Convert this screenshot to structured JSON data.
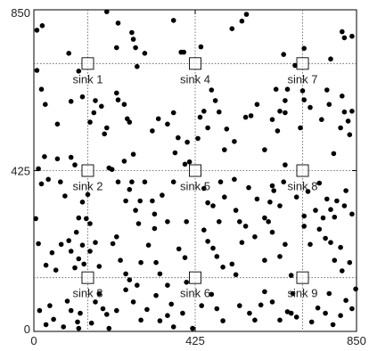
{
  "chart_data": {
    "type": "scatter",
    "title": "",
    "xlabel": "",
    "ylabel": "",
    "xlim": [
      0,
      850
    ],
    "ylim": [
      0,
      850
    ],
    "x_ticks": [
      "0",
      "425",
      "850"
    ],
    "y_ticks": [
      "0",
      "425",
      "850"
    ],
    "grid_lines": [
      142,
      425,
      708
    ],
    "grid": "dotted",
    "sinks": [
      {
        "label": "sink 1",
        "x": 142,
        "y": 708
      },
      {
        "label": "sink 2",
        "x": 142,
        "y": 425
      },
      {
        "label": "sink 3",
        "x": 142,
        "y": 142
      },
      {
        "label": "sink 4",
        "x": 425,
        "y": 708
      },
      {
        "label": "sink 5",
        "x": 425,
        "y": 425
      },
      {
        "label": "sink 6",
        "x": 425,
        "y": 142
      },
      {
        "label": "sink 7",
        "x": 708,
        "y": 708
      },
      {
        "label": "sink 8",
        "x": 708,
        "y": 425
      },
      {
        "label": "sink 9",
        "x": 708,
        "y": 142
      }
    ],
    "points": [
      [
        8,
        796
      ],
      [
        22,
        808
      ],
      [
        8,
        690
      ],
      [
        92,
        735
      ],
      [
        118,
        688
      ],
      [
        192,
        845
      ],
      [
        222,
        815
      ],
      [
        218,
        750
      ],
      [
        258,
        790
      ],
      [
        262,
        772
      ],
      [
        268,
        750
      ],
      [
        272,
        700
      ],
      [
        292,
        735
      ],
      [
        368,
        822
      ],
      [
        388,
        738
      ],
      [
        395,
        738
      ],
      [
        440,
        752
      ],
      [
        522,
        800
      ],
      [
        548,
        820
      ],
      [
        560,
        838
      ],
      [
        658,
        732
      ],
      [
        688,
        703
      ],
      [
        712,
        748
      ],
      [
        782,
        720
      ],
      [
        812,
        792
      ],
      [
        838,
        780
      ],
      [
        818,
        776
      ],
      [
        20,
        640
      ],
      [
        30,
        600
      ],
      [
        62,
        548
      ],
      [
        98,
        608
      ],
      [
        128,
        620
      ],
      [
        148,
        553
      ],
      [
        158,
        578
      ],
      [
        162,
        610
      ],
      [
        178,
        595
      ],
      [
        192,
        538
      ],
      [
        186,
        522
      ],
      [
        218,
        630
      ],
      [
        222,
        612
      ],
      [
        238,
        600
      ],
      [
        246,
        562
      ],
      [
        252,
        553
      ],
      [
        262,
        468
      ],
      [
        312,
        530
      ],
      [
        328,
        562
      ],
      [
        352,
        548
      ],
      [
        368,
        578
      ],
      [
        372,
        472
      ],
      [
        380,
        512
      ],
      [
        404,
        500
      ],
      [
        410,
        448
      ],
      [
        432,
        510
      ],
      [
        438,
        566
      ],
      [
        448,
        582
      ],
      [
        458,
        538
      ],
      [
        468,
        638
      ],
      [
        478,
        610
      ],
      [
        488,
        580
      ],
      [
        508,
        535
      ],
      [
        502,
        480
      ],
      [
        528,
        502
      ],
      [
        558,
        566
      ],
      [
        572,
        570
      ],
      [
        588,
        600
      ],
      [
        608,
        480
      ],
      [
        628,
        560
      ],
      [
        638,
        640
      ],
      [
        642,
        530
      ],
      [
        648,
        582
      ],
      [
        662,
        578
      ],
      [
        662,
        610
      ],
      [
        668,
        640
      ],
      [
        702,
        538
      ],
      [
        708,
        636
      ],
      [
        712,
        612
      ],
      [
        728,
        592
      ],
      [
        758,
        560
      ],
      [
        772,
        638
      ],
      [
        778,
        600
      ],
      [
        790,
        470
      ],
      [
        808,
        538
      ],
      [
        812,
        622
      ],
      [
        818,
        580
      ],
      [
        828,
        556
      ],
      [
        832,
        520
      ],
      [
        838,
        582
      ],
      [
        12,
        430
      ],
      [
        28,
        462
      ],
      [
        20,
        390
      ],
      [
        5,
        298
      ],
      [
        38,
        402
      ],
      [
        62,
        456
      ],
      [
        70,
        395
      ],
      [
        82,
        358
      ],
      [
        98,
        460
      ],
      [
        108,
        440
      ],
      [
        118,
        300
      ],
      [
        128,
        342
      ],
      [
        138,
        298
      ],
      [
        142,
        362
      ],
      [
        148,
        285
      ],
      [
        198,
        432
      ],
      [
        206,
        428
      ],
      [
        222,
        395
      ],
      [
        238,
        450
      ],
      [
        242,
        345
      ],
      [
        252,
        375
      ],
      [
        258,
        395
      ],
      [
        268,
        320
      ],
      [
        276,
        285
      ],
      [
        280,
        345
      ],
      [
        292,
        395
      ],
      [
        312,
        345
      ],
      [
        318,
        310
      ],
      [
        338,
        360
      ],
      [
        352,
        290
      ],
      [
        368,
        395
      ],
      [
        398,
        442
      ],
      [
        402,
        290
      ],
      [
        448,
        378
      ],
      [
        458,
        340
      ],
      [
        472,
        332
      ],
      [
        488,
        290
      ],
      [
        492,
        395
      ],
      [
        502,
        355
      ],
      [
        528,
        402
      ],
      [
        532,
        320
      ],
      [
        542,
        290
      ],
      [
        566,
        380
      ],
      [
        588,
        350
      ],
      [
        608,
        300
      ],
      [
        618,
        290
      ],
      [
        622,
        342
      ],
      [
        628,
        385
      ],
      [
        632,
        372
      ],
      [
        648,
        332
      ],
      [
        658,
        395
      ],
      [
        662,
        440
      ],
      [
        692,
        355
      ],
      [
        712,
        305
      ],
      [
        722,
        370
      ],
      [
        742,
        320
      ],
      [
        752,
        392
      ],
      [
        762,
        300
      ],
      [
        772,
        350
      ],
      [
        782,
        322
      ],
      [
        792,
        302
      ],
      [
        798,
        345
      ],
      [
        818,
        332
      ],
      [
        822,
        372
      ],
      [
        838,
        310
      ],
      [
        12,
        232
      ],
      [
        32,
        175
      ],
      [
        48,
        208
      ],
      [
        58,
        162
      ],
      [
        72,
        230
      ],
      [
        92,
        240
      ],
      [
        98,
        212
      ],
      [
        108,
        168
      ],
      [
        112,
        262
      ],
      [
        118,
        192
      ],
      [
        128,
        228
      ],
      [
        132,
        178
      ],
      [
        148,
        212
      ],
      [
        162,
        235
      ],
      [
        172,
        172
      ],
      [
        208,
        232
      ],
      [
        218,
        250
      ],
      [
        228,
        188
      ],
      [
        242,
        152
      ],
      [
        252,
        136
      ],
      [
        272,
        122
      ],
      [
        282,
        182
      ],
      [
        302,
        228
      ],
      [
        318,
        272
      ],
      [
        322,
        182
      ],
      [
        332,
        152
      ],
      [
        352,
        122
      ],
      [
        382,
        218
      ],
      [
        398,
        195
      ],
      [
        402,
        130
      ],
      [
        448,
        268
      ],
      [
        458,
        238
      ],
      [
        472,
        220
      ],
      [
        482,
        198
      ],
      [
        498,
        170
      ],
      [
        522,
        178
      ],
      [
        532,
        150
      ],
      [
        548,
        235
      ],
      [
        558,
        278
      ],
      [
        582,
        250
      ],
      [
        608,
        188
      ],
      [
        628,
        262
      ],
      [
        648,
        198
      ],
      [
        662,
        230
      ],
      [
        678,
        148
      ],
      [
        712,
        278
      ],
      [
        728,
        230
      ],
      [
        752,
        270
      ],
      [
        768,
        246
      ],
      [
        782,
        235
      ],
      [
        792,
        188
      ],
      [
        808,
        222
      ],
      [
        812,
        160
      ],
      [
        832,
        182
      ],
      [
        848,
        112
      ],
      [
        15,
        55
      ],
      [
        32,
        18
      ],
      [
        42,
        68
      ],
      [
        52,
        32
      ],
      [
        78,
        12
      ],
      [
        88,
        80
      ],
      [
        98,
        55
      ],
      [
        115,
        25
      ],
      [
        122,
        48
      ],
      [
        118,
        8
      ],
      [
        152,
        22
      ],
      [
        162,
        78
      ],
      [
        172,
        100
      ],
      [
        182,
        60
      ],
      [
        192,
        45
      ],
      [
        198,
        8
      ],
      [
        218,
        55
      ],
      [
        242,
        110
      ],
      [
        262,
        78
      ],
      [
        282,
        30
      ],
      [
        298,
        58
      ],
      [
        322,
        95
      ],
      [
        332,
        28
      ],
      [
        352,
        42
      ],
      [
        362,
        72
      ],
      [
        368,
        12
      ],
      [
        392,
        48
      ],
      [
        418,
        8
      ],
      [
        442,
        68
      ],
      [
        468,
        98
      ],
      [
        482,
        60
      ],
      [
        498,
        28
      ],
      [
        542,
        68
      ],
      [
        568,
        48
      ],
      [
        582,
        30
      ],
      [
        598,
        70
      ],
      [
        608,
        105
      ],
      [
        628,
        78
      ],
      [
        648,
        30
      ],
      [
        668,
        52
      ],
      [
        678,
        48
      ],
      [
        682,
        100
      ],
      [
        692,
        38
      ],
      [
        732,
        25
      ],
      [
        748,
        62
      ],
      [
        768,
        48
      ],
      [
        778,
        100
      ],
      [
        788,
        18
      ],
      [
        808,
        42
      ],
      [
        822,
        82
      ],
      [
        838,
        60
      ]
    ]
  }
}
